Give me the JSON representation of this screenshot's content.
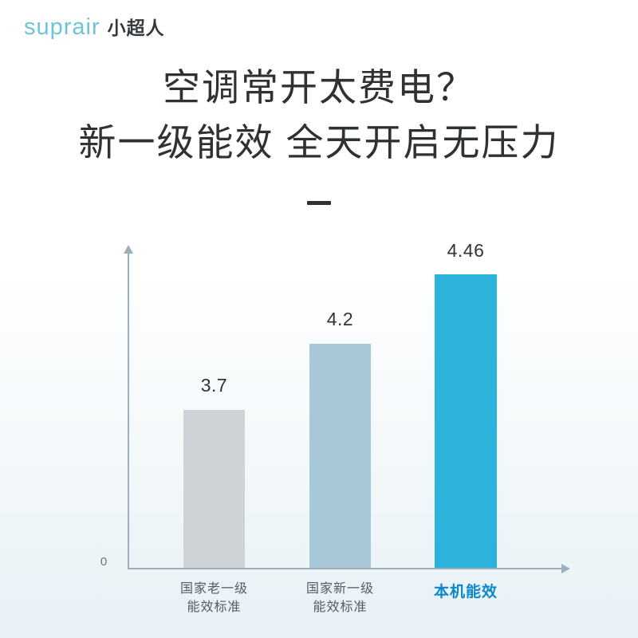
{
  "brand": {
    "logo_en": "suprair",
    "logo_cn": "小超人"
  },
  "headline": {
    "line1": "空调常开太费电？",
    "line2": "新一级能效 全天开启无压力"
  },
  "chart_data": {
    "type": "bar",
    "categories": [
      "国家老一级\n能效标准",
      "国家新一级\n能效标准",
      "本机能效"
    ],
    "values": [
      3.7,
      4.2,
      4.46
    ],
    "value_labels": [
      "3.7",
      "4.2",
      "4.46"
    ],
    "y_origin_label": "0",
    "bar_colors": [
      "#cdd3d7",
      "#a9c8d7",
      "#2cb3dc"
    ],
    "highlight_index": 2,
    "highlight_label_color": "#0e87c9",
    "axis_color": "#9bb0bf",
    "title": "",
    "xlabel": "",
    "ylabel": "",
    "legend": "off",
    "grid": "off"
  },
  "colors": {
    "logo_en": "#6ec5d7",
    "headline_text": "#2f3235",
    "background_bottom": "#e7f1f6"
  }
}
